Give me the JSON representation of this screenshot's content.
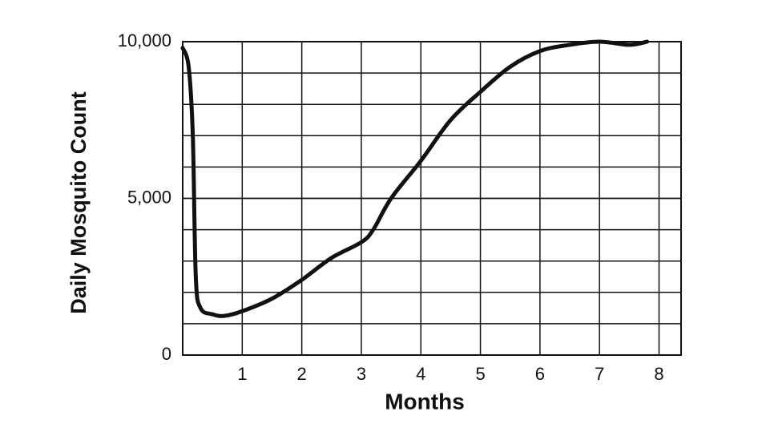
{
  "chart_data": {
    "type": "line",
    "xlabel": "Months",
    "ylabel": "Daily Mosquito Count",
    "x": [
      0,
      0.1,
      0.17,
      0.22,
      0.3,
      0.5,
      0.7,
      1,
      1.5,
      2,
      2.5,
      3,
      3.2,
      3.5,
      4,
      4.5,
      5,
      5.5,
      6,
      6.5,
      7,
      7.5,
      7.8
    ],
    "series": [
      {
        "color": "#111111",
        "values": [
          9800,
          9200,
          7000,
          2500,
          1500,
          1300,
          1250,
          1400,
          1800,
          2400,
          3100,
          3600,
          4000,
          5000,
          6200,
          7500,
          8400,
          9200,
          9700,
          9900,
          10000,
          9900,
          10000
        ]
      }
    ],
    "xlim": [
      0,
      8.37
    ],
    "ylim": [
      0,
      10000
    ],
    "xticks": [
      1,
      2,
      3,
      4,
      5,
      6,
      7,
      8
    ],
    "yticks": [
      0,
      {
        "value": 5000,
        "label": "5,000"
      },
      {
        "value": 10000,
        "label": "10,000"
      }
    ],
    "ygrid": [
      1000,
      2000,
      3000,
      4000,
      5000,
      6000,
      7000,
      8000,
      9000
    ],
    "grid": true
  }
}
